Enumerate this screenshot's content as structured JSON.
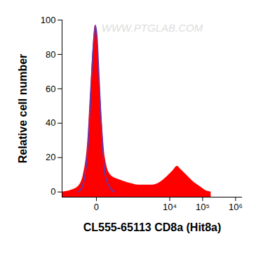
{
  "chart_data": {
    "type": "histogram",
    "x_label": "CL555-65113 CD8a (Hit8a)",
    "y_label": "Relative cell number",
    "annotations": [
      "WWW.PTGLAB.COM"
    ],
    "log": "x",
    "xlim": [
      -600,
      1600000
    ],
    "xticks": [
      0,
      {
        "value": 10000,
        "label": "10⁴"
      },
      {
        "value": 100000,
        "label": "10⁵"
      },
      {
        "value": 1000000,
        "label": "10⁶"
      }
    ],
    "ylim": [
      -3,
      100
    ],
    "yticks": [
      0,
      20,
      40,
      60,
      80,
      100
    ],
    "grid": false,
    "series": [
      {
        "type": "area",
        "color": "#ff0000",
        "x": [
          -600,
          -300,
          -160,
          -90,
          -50,
          -30,
          -15,
          -5,
          3,
          13,
          30,
          50,
          100,
          250,
          600,
          1200,
          2700,
          4400,
          7300,
          12000,
          17000,
          22000,
          32000,
          52000,
          85000,
          120000,
          180000
        ],
        "values": [
          0,
          1,
          3,
          10,
          30,
          60,
          85,
          97,
          92,
          70,
          40,
          20,
          10,
          7,
          5,
          4,
          4,
          5,
          8,
          12,
          15,
          13,
          10,
          6,
          3,
          1,
          0
        ]
      },
      {
        "type": "line",
        "color": "#4b3fd1",
        "x": [
          -150,
          -90,
          -50,
          -30,
          -15,
          -5,
          3,
          13,
          30,
          50,
          100,
          150
        ],
        "values": [
          0,
          5,
          25,
          55,
          85,
          97,
          90,
          65,
          30,
          10,
          2,
          0
        ]
      }
    ]
  }
}
